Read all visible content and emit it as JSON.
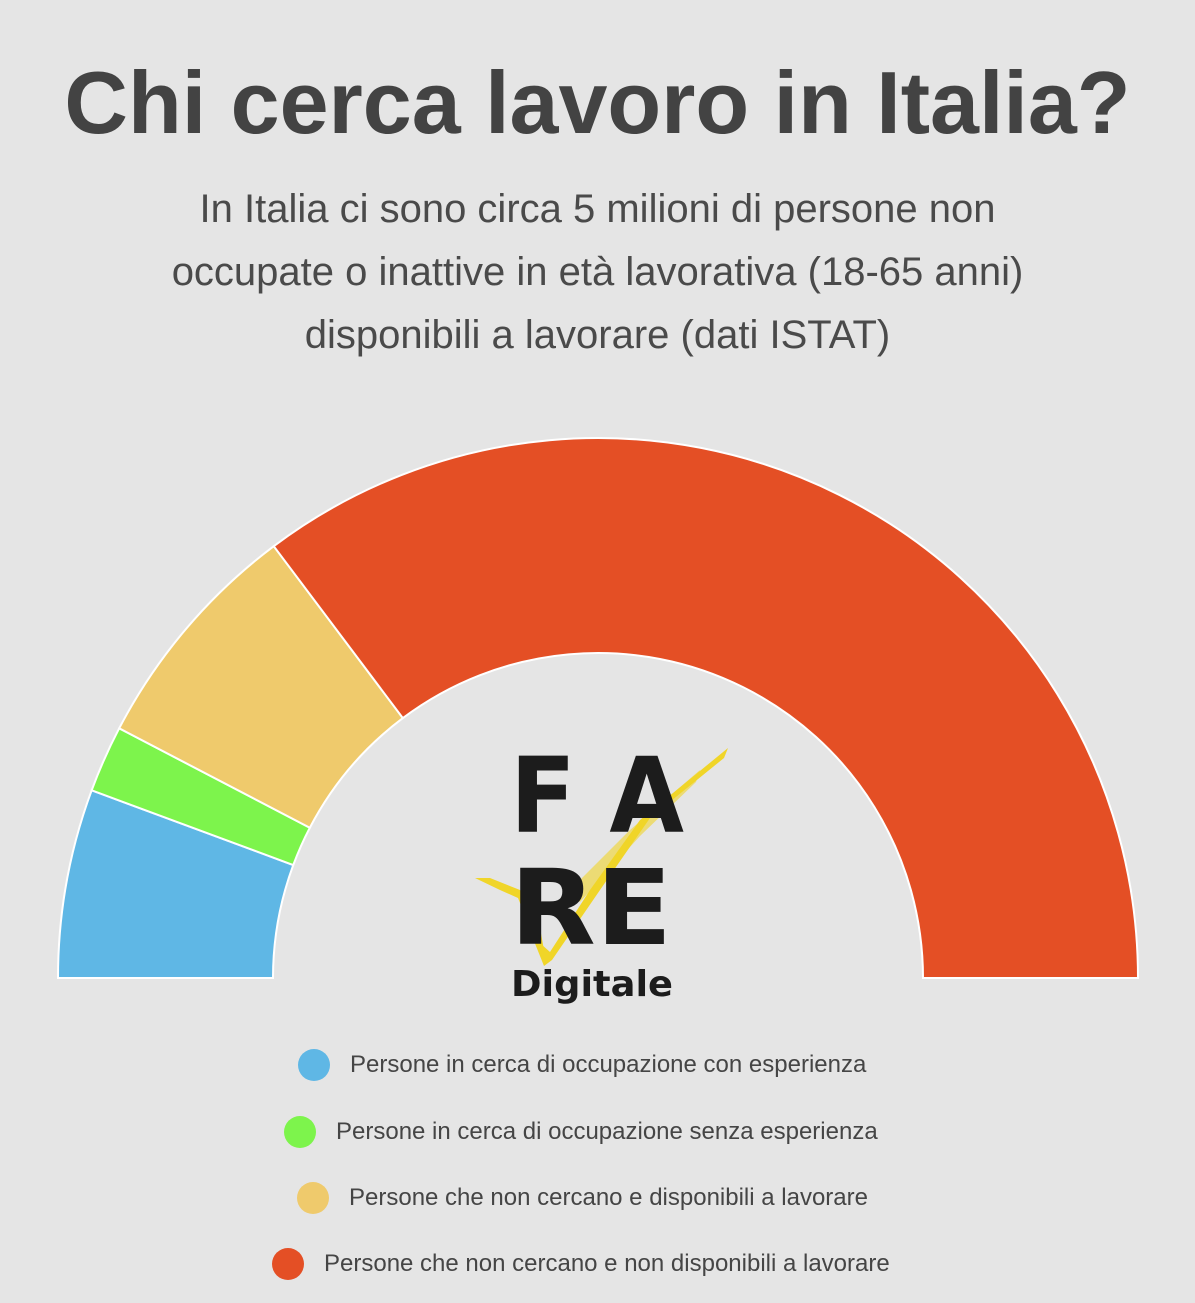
{
  "title": "Chi cerca lavoro in Italia?",
  "subtitle_lines": [
    "In Italia ci sono circa 5 milioni di persone non",
    "occupate o inattive in età lavorativa (18-65 anni)",
    "disponibili a lavorare (dati ISTAT)"
  ],
  "logo": {
    "line1": "F A",
    "line2": "RE",
    "line3": "Digitale"
  },
  "chart_data": {
    "type": "pie",
    "subtype": "semicircle-donut",
    "categories": [
      "Persone in cerca di occupazione con esperienza",
      "Persone in cerca di occupazione senza esperienza",
      "Persone che non cercano e disponibili a lavorare",
      "Persone che non cercano e non disponibili a lavorare"
    ],
    "values": [
      11.3,
      4.0,
      14.2,
      70.5
    ],
    "colors": [
      "#5fb7e5",
      "#7df44c",
      "#efca6c",
      "#e44f25"
    ],
    "legend_position": "bottom"
  }
}
